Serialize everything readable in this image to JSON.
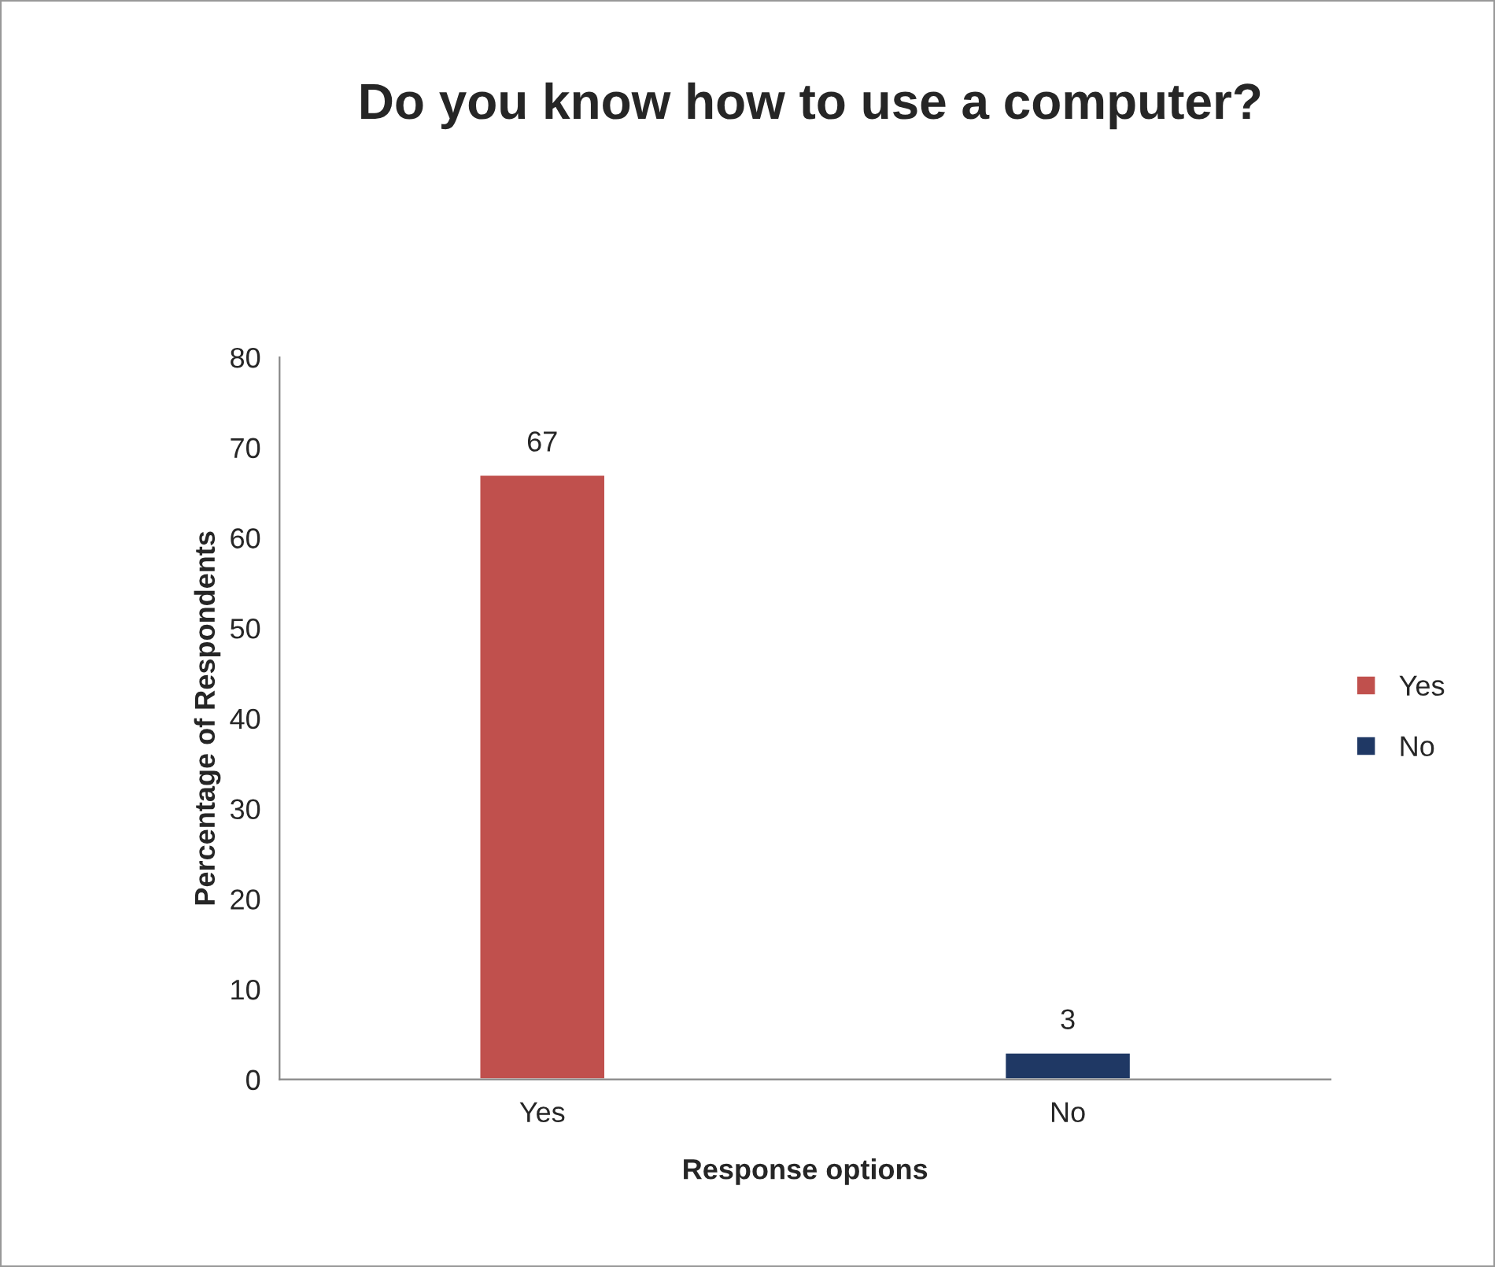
{
  "chart_data": {
    "type": "bar",
    "title": "Do you know how to use a computer?",
    "xlabel": "Response options",
    "ylabel": "Percentage of Respondents",
    "categories": [
      "Yes",
      "No"
    ],
    "series": [
      {
        "name": "Yes",
        "color": "#c0504d",
        "values": [
          67,
          null
        ]
      },
      {
        "name": "No",
        "color": "#1f3864",
        "values": [
          null,
          3
        ]
      }
    ],
    "ylim": [
      0,
      80
    ],
    "yticks": [
      0,
      10,
      20,
      30,
      40,
      50,
      60,
      70,
      80
    ],
    "data_labels": true,
    "legend": "right",
    "grid": false
  }
}
